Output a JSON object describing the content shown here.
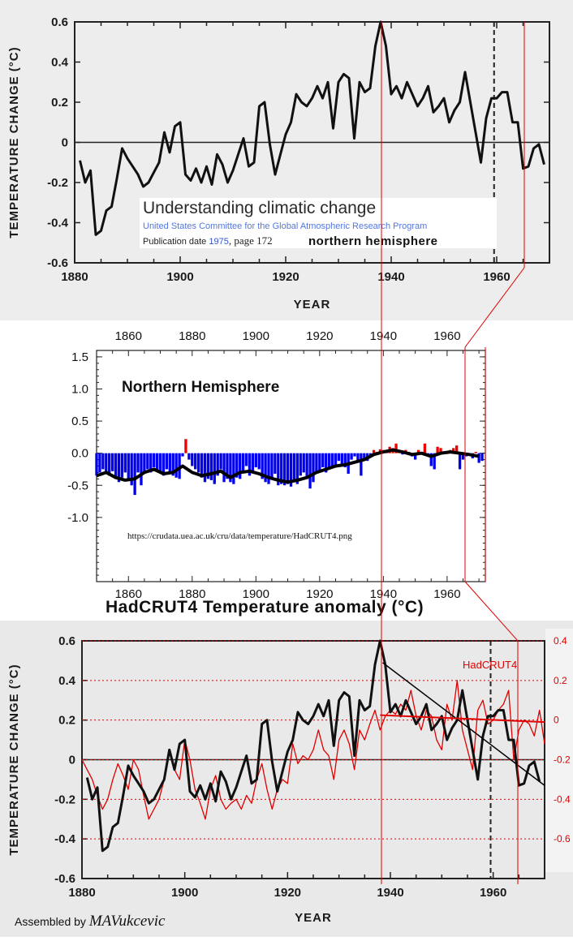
{
  "source": {
    "title": "Understanding climatic change",
    "org": "United States Committee for the Global Atmospheric Research Program",
    "pub_label": "Publication date",
    "pub_year": "1975",
    "pub_page": ", page 172",
    "hemisphere": "northern  hemisphere"
  },
  "middle": {
    "title": "Northern Hemisphere",
    "url": "https://crudata.uea.ac.uk/cru/data/temperature/HadCRUT4.png",
    "caption": "HadCRUT4  Temperature anomaly (°C)"
  },
  "bottom": {
    "series_label": "HadCRUT4",
    "credit_prefix": "Assembled by",
    "credit_signature": "MAVukcevic"
  },
  "colors": {
    "black_series": "#111111",
    "red_series": "#e00000",
    "bars_negative": "#0000ee",
    "bars_positive": "#ee0000"
  },
  "chart_data": [
    {
      "type": "line",
      "xlabel": "YEAR",
      "ylabel": "TEMPERATURE CHANGE (°C)",
      "xlim": [
        1880,
        1970
      ],
      "ylim": [
        -0.6,
        0.6
      ],
      "xticks": [
        "1880",
        "1900",
        "1920",
        "1940",
        "1960"
      ],
      "yticks": [
        "0.6",
        "0.4",
        "0.2",
        "0",
        "-0.2",
        "-0.4",
        "-0.6"
      ],
      "series": [
        {
          "x": [
            1881,
            1882,
            1883,
            1884,
            1885,
            1886,
            1887,
            1888,
            1889,
            1890,
            1891,
            1892,
            1893,
            1894,
            1895,
            1896,
            1897,
            1898,
            1899,
            1900,
            1901,
            1902,
            1903,
            1904,
            1905,
            1906,
            1907,
            1908,
            1909,
            1910,
            1911,
            1912,
            1913,
            1914,
            1915,
            1916,
            1917,
            1918,
            1919,
            1920,
            1921,
            1922,
            1923,
            1924,
            1925,
            1926,
            1927,
            1928,
            1929,
            1930,
            1931,
            1932,
            1933,
            1934,
            1935,
            1936,
            1937,
            1938,
            1939,
            1940,
            1941,
            1942,
            1943,
            1944,
            1945,
            1946,
            1947,
            1948,
            1949,
            1950,
            1951,
            1952,
            1953,
            1954,
            1955,
            1956,
            1957,
            1958,
            1959,
            1960,
            1961,
            1962,
            1963,
            1964,
            1965,
            1966,
            1967,
            1968,
            1969
          ],
          "y": [
            -0.09,
            -0.2,
            -0.14,
            -0.46,
            -0.44,
            -0.34,
            -0.32,
            -0.18,
            -0.03,
            -0.08,
            -0.12,
            -0.16,
            -0.22,
            -0.2,
            -0.15,
            -0.1,
            0.05,
            -0.05,
            0.08,
            0.1,
            -0.16,
            -0.19,
            -0.13,
            -0.2,
            -0.12,
            -0.21,
            -0.06,
            -0.11,
            -0.2,
            -0.14,
            -0.06,
            0.02,
            -0.12,
            -0.1,
            0.18,
            0.2,
            -0.01,
            -0.16,
            -0.06,
            0.04,
            0.1,
            0.24,
            0.2,
            0.18,
            0.22,
            0.28,
            0.22,
            0.3,
            0.07,
            0.3,
            0.34,
            0.32,
            0.02,
            0.3,
            0.25,
            0.27,
            0.48,
            0.6,
            0.48,
            0.24,
            0.28,
            0.22,
            0.3,
            0.24,
            0.18,
            0.22,
            0.28,
            0.15,
            0.18,
            0.22,
            0.1,
            0.16,
            0.2,
            0.35,
            0.2,
            0.05,
            -0.1,
            0.12,
            0.22,
            0.22,
            0.25,
            0.25,
            0.1,
            0.1,
            -0.13,
            -0.12,
            -0.03,
            -0.01,
            -0.11
          ]
        }
      ]
    },
    {
      "type": "bar",
      "title": "Northern Hemisphere",
      "xlim": [
        1850,
        1972
      ],
      "ylim": [
        -2.0,
        1.6
      ],
      "xticks": [
        "1860",
        "1880",
        "1900",
        "1920",
        "1940",
        "1960"
      ],
      "yticks": [
        "1.5",
        "1.0",
        "0.5",
        "0.0",
        "-0.5",
        "-1.0"
      ],
      "x": [
        1850,
        1851,
        1852,
        1853,
        1854,
        1855,
        1856,
        1857,
        1858,
        1859,
        1860,
        1861,
        1862,
        1863,
        1864,
        1865,
        1866,
        1867,
        1868,
        1869,
        1870,
        1871,
        1872,
        1873,
        1874,
        1875,
        1876,
        1877,
        1878,
        1879,
        1880,
        1881,
        1882,
        1883,
        1884,
        1885,
        1886,
        1887,
        1888,
        1889,
        1890,
        1891,
        1892,
        1893,
        1894,
        1895,
        1896,
        1897,
        1898,
        1899,
        1900,
        1901,
        1902,
        1903,
        1904,
        1905,
        1906,
        1907,
        1908,
        1909,
        1910,
        1911,
        1912,
        1913,
        1914,
        1915,
        1916,
        1917,
        1918,
        1919,
        1920,
        1921,
        1922,
        1923,
        1924,
        1925,
        1926,
        1927,
        1928,
        1929,
        1930,
        1931,
        1932,
        1933,
        1934,
        1935,
        1936,
        1937,
        1938,
        1939,
        1940,
        1941,
        1942,
        1943,
        1944,
        1945,
        1946,
        1947,
        1948,
        1949,
        1950,
        1951,
        1952,
        1953,
        1954,
        1955,
        1956,
        1957,
        1958,
        1959,
        1960,
        1961,
        1962,
        1963,
        1964,
        1965,
        1966,
        1967,
        1968,
        1969,
        1970,
        1971
      ],
      "values": [
        -0.35,
        -0.3,
        -0.25,
        -0.3,
        -0.35,
        -0.28,
        -0.4,
        -0.45,
        -0.38,
        -0.3,
        -0.42,
        -0.5,
        -0.65,
        -0.3,
        -0.5,
        -0.32,
        -0.25,
        -0.3,
        -0.22,
        -0.28,
        -0.3,
        -0.35,
        -0.25,
        -0.3,
        -0.35,
        -0.38,
        -0.4,
        -0.05,
        0.22,
        -0.1,
        -0.2,
        -0.25,
        -0.3,
        -0.38,
        -0.45,
        -0.4,
        -0.42,
        -0.48,
        -0.35,
        -0.25,
        -0.45,
        -0.4,
        -0.45,
        -0.48,
        -0.38,
        -0.4,
        -0.28,
        -0.2,
        -0.35,
        -0.3,
        -0.22,
        -0.25,
        -0.4,
        -0.45,
        -0.48,
        -0.38,
        -0.32,
        -0.5,
        -0.48,
        -0.5,
        -0.48,
        -0.52,
        -0.45,
        -0.48,
        -0.35,
        -0.3,
        -0.4,
        -0.55,
        -0.45,
        -0.32,
        -0.3,
        -0.22,
        -0.3,
        -0.25,
        -0.22,
        -0.2,
        -0.12,
        -0.2,
        -0.22,
        -0.32,
        -0.1,
        -0.05,
        -0.12,
        -0.35,
        -0.1,
        -0.12,
        -0.05,
        0.05,
        0.02,
        0.06,
        0.05,
        0.04,
        0.1,
        0.08,
        0.15,
        0.05,
        -0.02,
        0.05,
        0.02,
        -0.05,
        -0.1,
        0.05,
        0.02,
        0.15,
        -0.05,
        -0.2,
        -0.25,
        0.1,
        0.08,
        0.02,
        0.0,
        0.05,
        0.08,
        0.12,
        -0.25,
        -0.1,
        -0.05,
        -0.02,
        -0.08,
        0.02,
        -0.15,
        -0.12
      ],
      "smooth": {
        "x": [
          1850,
          1853,
          1856,
          1859,
          1862,
          1865,
          1868,
          1871,
          1874,
          1877,
          1880,
          1883,
          1886,
          1889,
          1892,
          1895,
          1898,
          1901,
          1904,
          1907,
          1910,
          1913,
          1916,
          1919,
          1922,
          1925,
          1928,
          1931,
          1934,
          1937,
          1940,
          1943,
          1946,
          1949,
          1952,
          1955,
          1958,
          1961,
          1964,
          1967,
          1970
        ],
        "y": [
          -0.35,
          -0.3,
          -0.38,
          -0.42,
          -0.4,
          -0.3,
          -0.25,
          -0.32,
          -0.3,
          -0.2,
          -0.3,
          -0.35,
          -0.32,
          -0.28,
          -0.38,
          -0.3,
          -0.28,
          -0.32,
          -0.38,
          -0.42,
          -0.45,
          -0.42,
          -0.38,
          -0.3,
          -0.25,
          -0.2,
          -0.18,
          -0.14,
          -0.1,
          -0.02,
          0.02,
          0.05,
          0.02,
          -0.02,
          0.0,
          -0.05,
          0.0,
          0.02,
          0.0,
          -0.02,
          -0.05
        ]
      }
    },
    {
      "type": "line",
      "xlabel": "YEAR",
      "ylabel": "TEMPERATURE CHANGE (°C)",
      "xlim": [
        1880,
        1970
      ],
      "ylim": [
        -0.6,
        0.6
      ],
      "xticks": [
        "1880",
        "1900",
        "1920",
        "1940",
        "1960"
      ],
      "yticks": [
        "0.6",
        "0.4",
        "0.2",
        "0",
        "-0.2",
        "-0.4",
        "-0.6"
      ],
      "right_yticks": [
        "0.4",
        "0.2",
        "0",
        "-0.2",
        "-0.4",
        "-0.6"
      ],
      "series": [
        {
          "x": [
            1881,
            1882,
            1883,
            1884,
            1885,
            1886,
            1887,
            1888,
            1889,
            1890,
            1891,
            1892,
            1893,
            1894,
            1895,
            1896,
            1897,
            1898,
            1899,
            1900,
            1901,
            1902,
            1903,
            1904,
            1905,
            1906,
            1907,
            1908,
            1909,
            1910,
            1911,
            1912,
            1913,
            1914,
            1915,
            1916,
            1917,
            1918,
            1919,
            1920,
            1921,
            1922,
            1923,
            1924,
            1925,
            1926,
            1927,
            1928,
            1929,
            1930,
            1931,
            1932,
            1933,
            1934,
            1935,
            1936,
            1937,
            1938,
            1939,
            1940,
            1941,
            1942,
            1943,
            1944,
            1945,
            1946,
            1947,
            1948,
            1949,
            1950,
            1951,
            1952,
            1953,
            1954,
            1955,
            1956,
            1957,
            1958,
            1959,
            1960,
            1961,
            1962,
            1963,
            1964,
            1965,
            1966,
            1967,
            1968,
            1969
          ],
          "y": [
            -0.09,
            -0.2,
            -0.14,
            -0.46,
            -0.44,
            -0.34,
            -0.32,
            -0.18,
            -0.03,
            -0.08,
            -0.12,
            -0.16,
            -0.22,
            -0.2,
            -0.15,
            -0.1,
            0.05,
            -0.05,
            0.08,
            0.1,
            -0.16,
            -0.19,
            -0.13,
            -0.2,
            -0.12,
            -0.21,
            -0.06,
            -0.11,
            -0.2,
            -0.14,
            -0.06,
            0.02,
            -0.12,
            -0.1,
            0.18,
            0.2,
            -0.01,
            -0.16,
            -0.06,
            0.04,
            0.1,
            0.24,
            0.2,
            0.18,
            0.22,
            0.28,
            0.22,
            0.3,
            0.07,
            0.3,
            0.34,
            0.32,
            0.02,
            0.3,
            0.25,
            0.27,
            0.48,
            0.6,
            0.48,
            0.24,
            0.28,
            0.22,
            0.3,
            0.24,
            0.18,
            0.22,
            0.28,
            0.15,
            0.18,
            0.22,
            0.1,
            0.16,
            0.2,
            0.35,
            0.2,
            0.05,
            -0.1,
            0.12,
            0.22,
            0.22,
            0.25,
            0.25,
            0.1,
            0.1,
            -0.13,
            -0.12,
            -0.03,
            -0.01,
            -0.11
          ]
        },
        {
          "name": "HadCRUT4",
          "x": [
            1880,
            1881,
            1882,
            1883,
            1884,
            1885,
            1886,
            1887,
            1888,
            1889,
            1890,
            1891,
            1892,
            1893,
            1894,
            1895,
            1896,
            1897,
            1898,
            1899,
            1900,
            1901,
            1902,
            1903,
            1904,
            1905,
            1906,
            1907,
            1908,
            1909,
            1910,
            1911,
            1912,
            1913,
            1914,
            1915,
            1916,
            1917,
            1918,
            1919,
            1920,
            1921,
            1922,
            1923,
            1924,
            1925,
            1926,
            1927,
            1928,
            1929,
            1930,
            1931,
            1932,
            1933,
            1934,
            1935,
            1936,
            1937,
            1938,
            1939,
            1940,
            1941,
            1942,
            1943,
            1944,
            1945,
            1946,
            1947,
            1948,
            1949,
            1950,
            1951,
            1952,
            1953,
            1954,
            1955,
            1956,
            1957,
            1958,
            1959,
            1960,
            1961,
            1962,
            1963,
            1964,
            1965,
            1966,
            1967,
            1968,
            1969,
            1970
          ],
          "y": [
            -0.2,
            -0.25,
            -0.3,
            -0.38,
            -0.45,
            -0.4,
            -0.3,
            -0.22,
            -0.28,
            -0.35,
            -0.2,
            -0.25,
            -0.38,
            -0.5,
            -0.45,
            -0.4,
            -0.3,
            -0.15,
            -0.25,
            -0.3,
            -0.1,
            -0.2,
            -0.35,
            -0.42,
            -0.5,
            -0.35,
            -0.28,
            -0.4,
            -0.45,
            -0.42,
            -0.4,
            -0.45,
            -0.38,
            -0.42,
            -0.3,
            -0.22,
            -0.35,
            -0.45,
            -0.35,
            -0.3,
            -0.32,
            -0.12,
            -0.22,
            -0.18,
            -0.2,
            -0.15,
            -0.05,
            -0.15,
            -0.18,
            -0.3,
            -0.1,
            -0.05,
            -0.12,
            -0.25,
            -0.05,
            -0.1,
            -0.02,
            0.05,
            -0.05,
            0.02,
            0.05,
            0.03,
            0.08,
            0.05,
            0.15,
            0.02,
            -0.05,
            0.05,
            0.02,
            -0.1,
            -0.15,
            0.08,
            0.0,
            0.2,
            -0.05,
            -0.15,
            -0.25,
            0.05,
            0.1,
            -0.02,
            0.0,
            0.05,
            0.08,
            0.15,
            -0.2,
            -0.05,
            0.0,
            -0.02,
            -0.08,
            0.05,
            -0.12
          ]
        }
      ]
    }
  ]
}
